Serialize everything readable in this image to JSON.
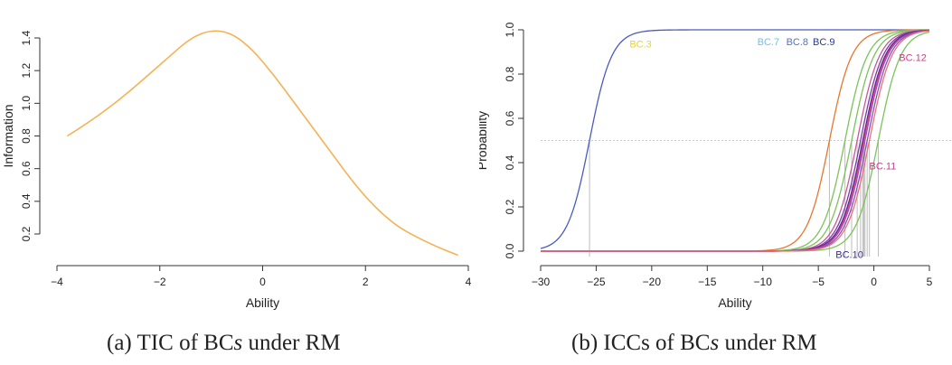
{
  "chart_data": [
    {
      "type": "line",
      "xlabel": "Ability",
      "ylabel": "Information",
      "xlim": [
        -4,
        4
      ],
      "ylim": [
        0.2,
        1.4
      ],
      "xticks": [
        "−4",
        "−2",
        "0",
        "2",
        "4"
      ],
      "yticks": [
        "0.2",
        "0.4",
        "0.6",
        "0.8",
        "1.0",
        "1.2",
        "1.4"
      ],
      "series": [
        {
          "color": "#f5b255",
          "x": [
            -3.8,
            -3.4,
            -3.0,
            -2.6,
            -2.2,
            -1.8,
            -1.4,
            -1.0,
            -0.6,
            -0.2,
            0.2,
            0.6,
            1.0,
            1.4,
            1.8,
            2.2,
            2.6,
            3.0,
            3.4,
            3.8
          ],
          "y": [
            0.8,
            0.88,
            0.97,
            1.07,
            1.18,
            1.29,
            1.4,
            1.45,
            1.43,
            1.33,
            1.18,
            1.01,
            0.84,
            0.67,
            0.5,
            0.36,
            0.25,
            0.18,
            0.12,
            0.07
          ]
        }
      ]
    },
    {
      "type": "line",
      "xlabel": "Ability",
      "ylabel": "Probability",
      "xlim": [
        -30,
        5
      ],
      "ylim": [
        0.0,
        1.0
      ],
      "xticks": [
        "−30",
        "−25",
        "−20",
        "−15",
        "−10",
        "−5",
        "0",
        "5"
      ],
      "yticks": [
        "0.0",
        "0.2",
        "0.4",
        "0.6",
        "0.8",
        "1.0"
      ],
      "reference_line_y": 0.5,
      "series": [
        {
          "color": "#4a5bbf",
          "difficulty": -25.6
        },
        {
          "color": "#e8762d",
          "difficulty": -4.0
        },
        {
          "color": "#7cc35a",
          "difficulty": -2.6
        },
        {
          "color": "#7cc35a",
          "difficulty": -2.0
        },
        {
          "color": "#7cc35a",
          "difficulty": 0.4
        },
        {
          "color": "#c7589a",
          "difficulty": -1.5
        },
        {
          "color": "#e03a86",
          "difficulty": -0.9
        },
        {
          "color": "#7f3aa8",
          "difficulty": -1.2
        },
        {
          "color": "#5c2c8c",
          "difficulty": -1.0
        },
        {
          "color": "#8a4fb0",
          "difficulty": -0.6
        },
        {
          "color": "#9b4db7",
          "difficulty": -0.8
        },
        {
          "color": "#ee6f74",
          "difficulty": -0.4
        }
      ],
      "annotations": [
        {
          "text": "BC.3",
          "x": -21.0,
          "y": 0.92,
          "color": "#e6d23a"
        },
        {
          "text": "BC.7",
          "x": -9.5,
          "y": 0.93,
          "color": "#6cc3e6"
        },
        {
          "text": "BC.8",
          "x": -6.9,
          "y": 0.93,
          "color": "#4f73c7"
        },
        {
          "text": "BC.9",
          "x": -4.5,
          "y": 0.93,
          "color": "#2c3a8c"
        },
        {
          "text": "BC.12",
          "x": 3.5,
          "y": 0.86,
          "color": "#d23d8a"
        },
        {
          "text": "BC.11",
          "x": 0.8,
          "y": 0.37,
          "color": "#c23f95"
        },
        {
          "text": "BC.10",
          "x": -2.2,
          "y": -0.03,
          "color": "#3a2d8c"
        }
      ]
    }
  ],
  "captions": {
    "a_prefix": "(a) TIC of BC",
    "a_italic": "s",
    "a_suffix": " under RM",
    "b_prefix": "(b) ICCs of BC",
    "b_italic": "s",
    "b_suffix": " under RM"
  }
}
